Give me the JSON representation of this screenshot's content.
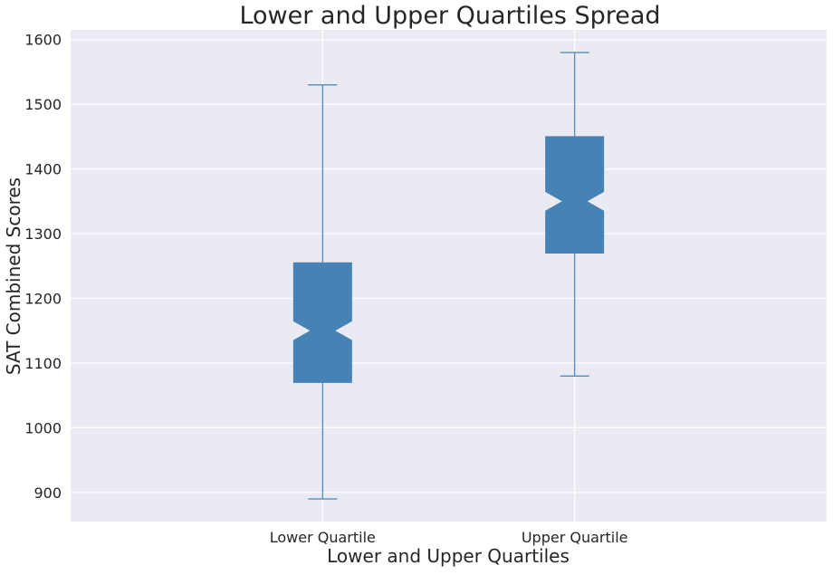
{
  "chart_data": {
    "type": "boxplot",
    "title": "Lower and Upper Quartiles Spread",
    "xlabel": "Lower and Upper Quartiles",
    "ylabel": "SAT Combined Scores",
    "categories": [
      "Lower Quartile",
      "Upper Quartile"
    ],
    "boxes": [
      {
        "category": "Lower Quartile",
        "whisker_low": 890,
        "q1": 1070,
        "median": 1150,
        "q3": 1255,
        "whisker_high": 1530,
        "notch_low": 1135,
        "notch_high": 1165
      },
      {
        "category": "Upper Quartile",
        "whisker_low": 1080,
        "q1": 1270,
        "median": 1350,
        "q3": 1450,
        "whisker_high": 1580,
        "notch_low": 1335,
        "notch_high": 1365
      }
    ],
    "ylim": [
      855,
      1615
    ],
    "yticks": [
      900,
      1000,
      1100,
      1200,
      1300,
      1400,
      1500,
      1600
    ],
    "grid": true,
    "notched": true,
    "box_color": "#4682B4",
    "background_color": "#EAEAF2",
    "grid_color": "#FFFFFF"
  }
}
